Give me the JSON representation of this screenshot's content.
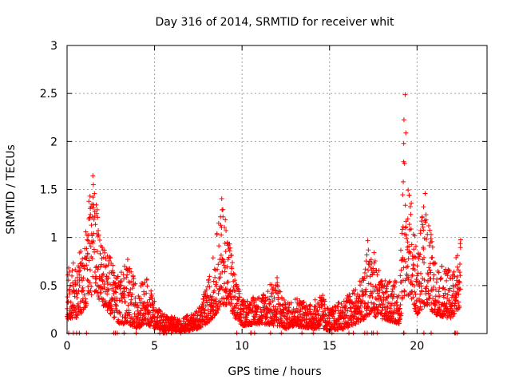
{
  "chart_data": {
    "type": "scatter",
    "title": "Day 316 of 2014, SRMTID for receiver whit",
    "xlabel": "GPS time / hours",
    "ylabel": "SRMTID / TECUs",
    "xlim": [
      0,
      24
    ],
    "ylim": [
      0,
      3
    ],
    "xticks": [
      0,
      5,
      10,
      15,
      20
    ],
    "yticks": [
      0,
      0.5,
      1,
      1.5,
      2,
      2.5,
      3
    ],
    "xtick_labels": [
      "0",
      "5",
      "10",
      "15",
      "20"
    ],
    "ytick_labels": [
      "0",
      "0.5",
      "1",
      "1.5",
      "2",
      "2.5",
      "3"
    ],
    "grid": true,
    "legend": "none",
    "marker": "+",
    "color": "#ff0000",
    "envelope": {
      "description": "approximate envelope of the dense scatter; [hour, low, high]",
      "points": [
        [
          0.0,
          0.15,
          0.7
        ],
        [
          0.5,
          0.15,
          0.75
        ],
        [
          1.0,
          0.25,
          1.05
        ],
        [
          1.3,
          0.35,
          1.45
        ],
        [
          1.5,
          0.45,
          1.68
        ],
        [
          1.7,
          0.4,
          1.5
        ],
        [
          2.0,
          0.3,
          0.9
        ],
        [
          2.5,
          0.2,
          0.8
        ],
        [
          3.0,
          0.1,
          0.6
        ],
        [
          3.5,
          0.1,
          0.8
        ],
        [
          4.0,
          0.05,
          0.45
        ],
        [
          4.5,
          0.1,
          0.6
        ],
        [
          5.0,
          0.05,
          0.35
        ],
        [
          5.5,
          0.03,
          0.2
        ],
        [
          6.0,
          0.03,
          0.18
        ],
        [
          6.5,
          0.02,
          0.15
        ],
        [
          7.0,
          0.03,
          0.2
        ],
        [
          7.5,
          0.05,
          0.25
        ],
        [
          8.0,
          0.1,
          0.5
        ],
        [
          8.5,
          0.2,
          0.95
        ],
        [
          8.8,
          0.3,
          1.45
        ],
        [
          9.2,
          0.3,
          1.15
        ],
        [
          9.6,
          0.15,
          0.6
        ],
        [
          10.0,
          0.08,
          0.35
        ],
        [
          11.0,
          0.1,
          0.4
        ],
        [
          12.0,
          0.08,
          0.6
        ],
        [
          12.5,
          0.05,
          0.3
        ],
        [
          13.0,
          0.08,
          0.4
        ],
        [
          14.0,
          0.05,
          0.3
        ],
        [
          14.5,
          0.05,
          0.45
        ],
        [
          15.0,
          0.03,
          0.25
        ],
        [
          16.0,
          0.05,
          0.4
        ],
        [
          17.0,
          0.15,
          0.6
        ],
        [
          17.2,
          0.2,
          1.08
        ],
        [
          18.0,
          0.15,
          0.55
        ],
        [
          19.0,
          0.1,
          0.55
        ],
        [
          19.2,
          0.3,
          1.9
        ],
        [
          19.3,
          0.4,
          2.65
        ],
        [
          19.5,
          0.4,
          1.7
        ],
        [
          20.0,
          0.2,
          0.8
        ],
        [
          20.5,
          0.3,
          1.55
        ],
        [
          21.0,
          0.2,
          0.75
        ],
        [
          22.0,
          0.15,
          0.65
        ],
        [
          22.5,
          0.3,
          1.02
        ]
      ]
    }
  }
}
